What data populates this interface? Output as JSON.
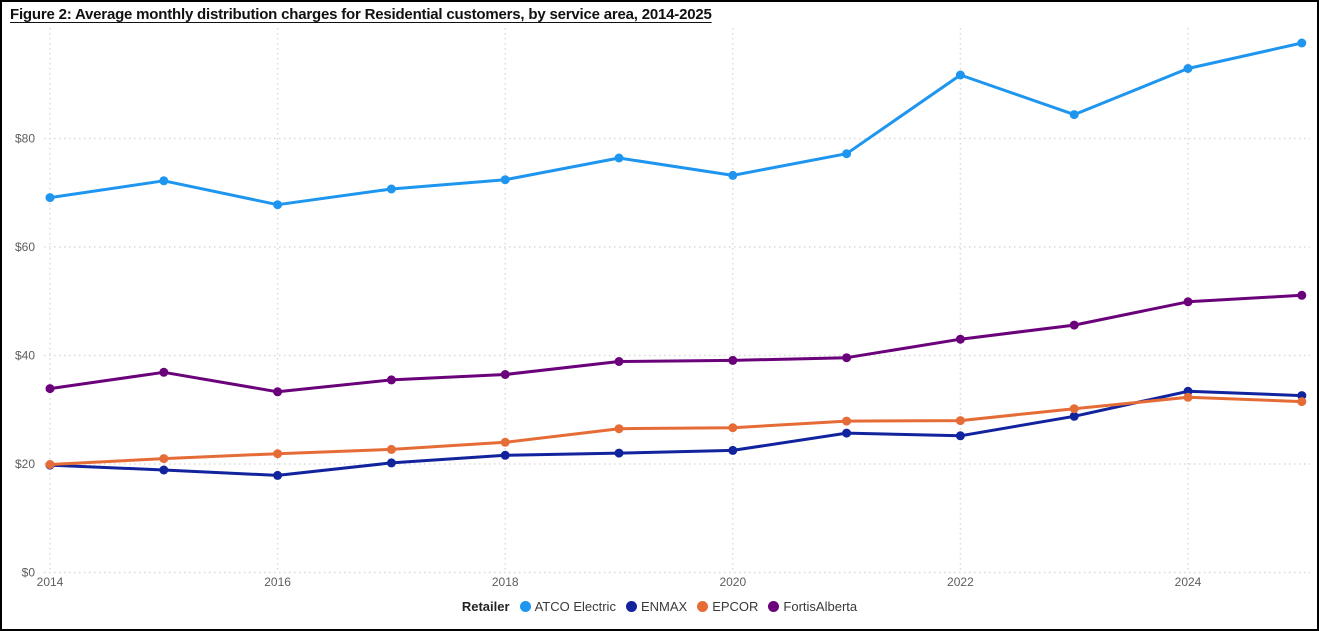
{
  "figure": {
    "title": "Figure 2: Average monthly distribution charges for Residential customers, by service area, 2014-2025"
  },
  "chart_data": {
    "type": "line",
    "title": "Figure 2: Average monthly distribution charges for Residential customers, by service area, 2014-2025",
    "xlabel": "",
    "ylabel": "",
    "x": [
      2014,
      2015,
      2016,
      2017,
      2018,
      2019,
      2020,
      2021,
      2022,
      2023,
      2024,
      2025
    ],
    "x_ticks": [
      {
        "label": "2014",
        "value": 2014
      },
      {
        "label": "2016",
        "value": 2016
      },
      {
        "label": "2018",
        "value": 2018
      },
      {
        "label": "2020",
        "value": 2020
      },
      {
        "label": "2022",
        "value": 2022
      },
      {
        "label": "2024",
        "value": 2024
      }
    ],
    "y_ticks": [
      {
        "label": "$0",
        "value": 0
      },
      {
        "label": "$20",
        "value": 20
      },
      {
        "label": "$40",
        "value": 40
      },
      {
        "label": "$60",
        "value": 60
      },
      {
        "label": "$80",
        "value": 80
      }
    ],
    "ylim": [
      0,
      100
    ],
    "grid": {
      "horizontal": "dotted",
      "vertical": "dotted",
      "vertical_at_even_years": true
    },
    "legend": {
      "title": "Retailer",
      "position": "bottom-center"
    },
    "series": [
      {
        "name": "ATCO Electric",
        "color": "#1E96F0",
        "values": [
          69.1,
          72.2,
          67.8,
          70.7,
          72.4,
          76.4,
          73.2,
          77.2,
          91.7,
          84.4,
          92.9,
          97.6
        ]
      },
      {
        "name": "ENMAX",
        "color": "#12239E",
        "values": [
          19.8,
          18.9,
          17.9,
          20.2,
          21.6,
          22.0,
          22.5,
          25.7,
          25.2,
          28.8,
          33.4,
          32.6
        ]
      },
      {
        "name": "EPCOR",
        "color": "#E66C37",
        "values": [
          19.9,
          21.0,
          21.9,
          22.7,
          24.0,
          26.5,
          26.7,
          27.9,
          28.0,
          30.2,
          32.3,
          31.5
        ]
      },
      {
        "name": "FortisAlberta",
        "color": "#6B007B",
        "values": [
          33.9,
          36.9,
          33.3,
          35.5,
          36.5,
          38.9,
          39.1,
          39.6,
          43.0,
          45.6,
          49.9,
          51.1
        ]
      }
    ]
  }
}
